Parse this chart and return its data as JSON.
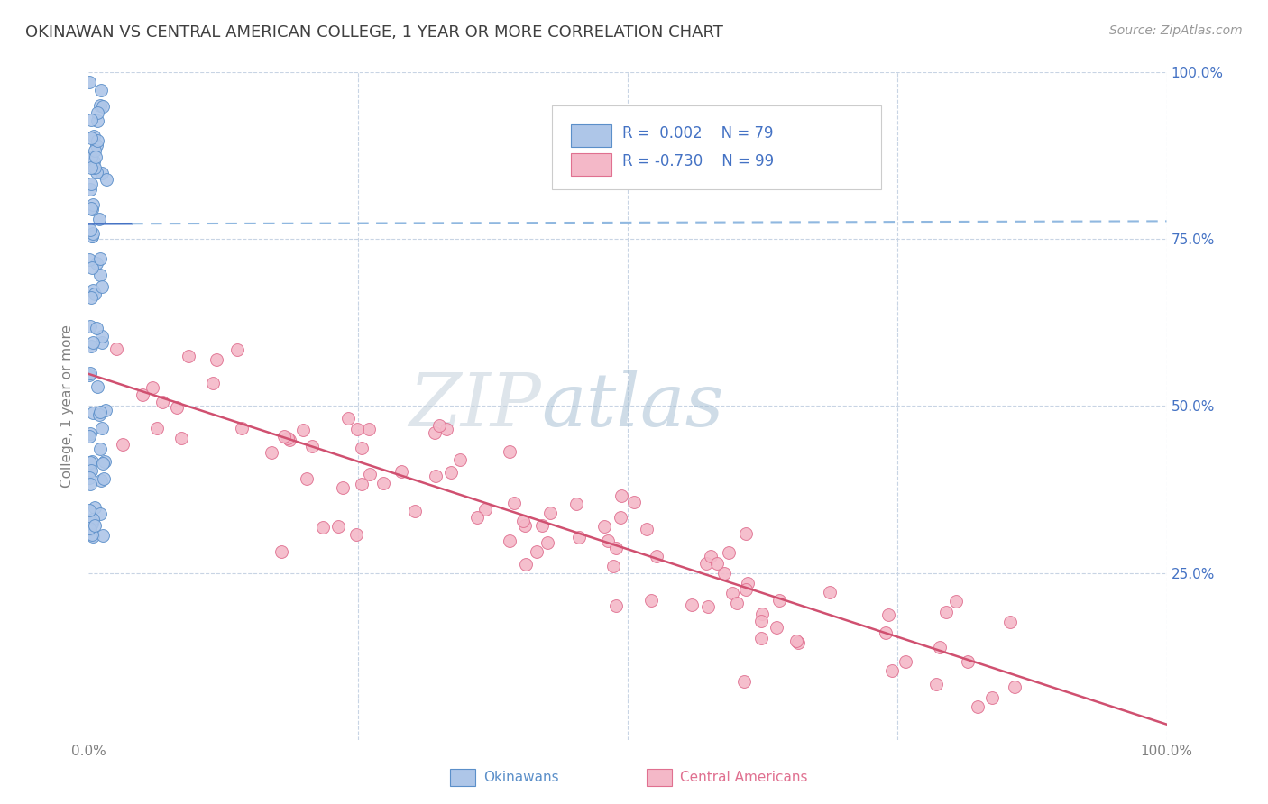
{
  "title": "OKINAWAN VS CENTRAL AMERICAN COLLEGE, 1 YEAR OR MORE CORRELATION CHART",
  "source": "Source: ZipAtlas.com",
  "ylabel": "College, 1 year or more",
  "xlim": [
    0,
    1
  ],
  "ylim": [
    0,
    1
  ],
  "legend_R": [
    "0.002",
    "-0.730"
  ],
  "legend_N": [
    "79",
    "99"
  ],
  "blue_color": "#aec6e8",
  "blue_edge_color": "#5b8fc9",
  "pink_color": "#f4b8c8",
  "pink_edge_color": "#e07090",
  "blue_line_color": "#4472c4",
  "pink_line_color": "#d05070",
  "watermark_zip_color": "#c0ccd8",
  "watermark_atlas_color": "#a8bcd0",
  "title_color": "#404040",
  "axis_color": "#808080",
  "legend_text_color": "#4472c4",
  "grid_color": "#c8d4e4",
  "blue_trend_intercept": 0.773,
  "blue_trend_slope": 0.004,
  "pink_trend_intercept": 0.548,
  "pink_trend_slope": -0.525,
  "blue_N": 79,
  "pink_N": 99
}
